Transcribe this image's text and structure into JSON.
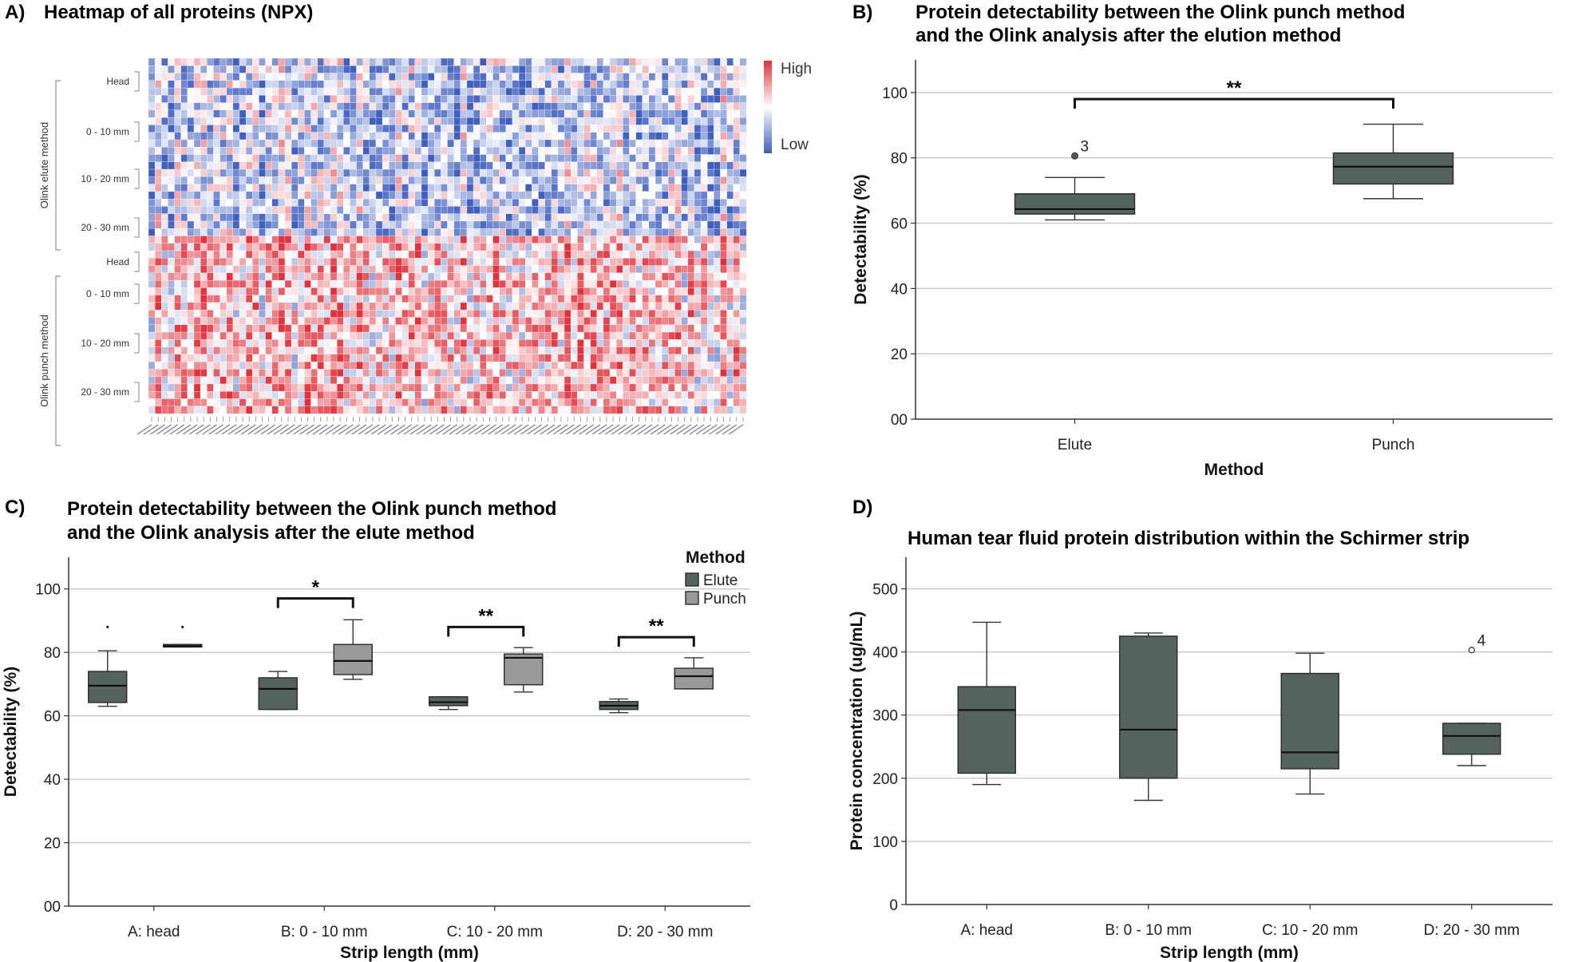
{
  "panels": {
    "a": {
      "letter": "A)",
      "title": "Heatmap of all proteins (NPX)",
      "legend_high": "High",
      "legend_low": "Low",
      "groups": [
        {
          "name": "Olink elute method",
          "rows": [
            "Head",
            "0 - 10 mm",
            "10 - 20 mm",
            "20 - 30 mm"
          ]
        },
        {
          "name": "Olink punch method",
          "rows": [
            "Head",
            "0 - 10 mm",
            "10 - 20 mm",
            "20 - 30 mm"
          ]
        }
      ],
      "colors": {
        "high": "#e0323c",
        "mid": "#ffffff",
        "low": "#3f5fbf"
      }
    },
    "b": {
      "letter": "B)"
    },
    "c": {
      "letter": "C)"
    },
    "d": {
      "letter": "D)"
    }
  },
  "chart_data": [
    {
      "id": "b",
      "type": "boxplot",
      "title": "Protein detectability between the Olink punch method",
      "title_line2": "and the Olink analysis after the elution method",
      "xlabel": "Method",
      "ylabel": "Detectability (%)",
      "ylim": [
        0,
        110
      ],
      "yticks": [
        0,
        20,
        40,
        60,
        80,
        100
      ],
      "ytick_labels": [
        "00",
        "20",
        "40",
        "60",
        "80",
        "100"
      ],
      "categories": [
        "Elute",
        "Punch"
      ],
      "series": [
        {
          "name": "Method",
          "color": "#56625c",
          "boxes": [
            {
              "min": 61,
              "q1": 62.8,
              "median": 64.3,
              "q3": 69,
              "max": 74
            },
            {
              "min": 67.5,
              "q1": 72,
              "median": 77.3,
              "q3": 81.5,
              "max": 90.3
            }
          ]
        }
      ],
      "outliers": [
        {
          "category": 0,
          "value": 80.6,
          "label": "3",
          "style": "filled"
        }
      ],
      "significance": [
        {
          "from": 0,
          "to": 1,
          "y": 98,
          "label": "**"
        }
      ]
    },
    {
      "id": "c",
      "type": "boxplot",
      "title": "Protein detectability between the Olink punch method",
      "title_line2": "and the Olink analysis after the elute method",
      "xlabel": "Strip length (mm)",
      "ylabel": "Detectability (%)",
      "ylim": [
        0,
        110
      ],
      "yticks": [
        0,
        20,
        40,
        60,
        80,
        100
      ],
      "ytick_labels": [
        "00",
        "20",
        "40",
        "60",
        "80",
        "100"
      ],
      "categories": [
        "A: head",
        "B: 0 - 10 mm",
        "C: 10 - 20 mm",
        "D: 20 - 30 mm"
      ],
      "legend_title": "Method",
      "series": [
        {
          "name": "Elute",
          "color": "#56625c",
          "boxes": [
            {
              "min": 63,
              "q1": 64.2,
              "median": 69.5,
              "q3": 74,
              "max": 80.5
            },
            {
              "min": 62,
              "q1": 62,
              "median": 68.5,
              "q3": 72,
              "max": 74
            },
            {
              "min": 62,
              "q1": 63.2,
              "median": 64.3,
              "q3": 66,
              "max": 66
            },
            {
              "min": 61,
              "q1": 62,
              "median": 63.2,
              "q3": 64.5,
              "max": 65.3
            }
          ]
        },
        {
          "name": "Punch",
          "color": "#9a9898",
          "boxes": [
            {
              "min": 81.7,
              "q1": 81.7,
              "median": 82,
              "q3": 82.5,
              "max": 82.5
            },
            {
              "min": 71.5,
              "q1": 73,
              "median": 77.3,
              "q3": 82.5,
              "max": 90.3
            },
            {
              "min": 67.5,
              "q1": 69.8,
              "median": 78.3,
              "q3": 79.5,
              "max": 81.5
            },
            {
              "min": 68.5,
              "q1": 68.5,
              "median": 72.5,
              "q3": 75,
              "max": 78.3
            }
          ]
        }
      ],
      "outliers": [
        {
          "category": 0,
          "series": 0,
          "value": 88
        },
        {
          "category": 0,
          "series": 1,
          "value": 88
        }
      ],
      "significance": [
        {
          "category": 1,
          "y": 97,
          "label": "*"
        },
        {
          "category": 2,
          "y": 88,
          "label": "**"
        },
        {
          "category": 3,
          "y": 84.8,
          "label": "**"
        }
      ]
    },
    {
      "id": "d",
      "type": "boxplot",
      "title": "Human tear fluid protein distribution within the Schirmer strip",
      "xlabel": "Strip length (mm)",
      "ylabel": "Protein concentration (ug/mL)",
      "ylim": [
        0,
        550
      ],
      "yticks": [
        0,
        100,
        200,
        300,
        400,
        500
      ],
      "ytick_labels": [
        "0",
        "100",
        "200",
        "300",
        "400",
        "500"
      ],
      "categories": [
        "A: head",
        "B: 0 - 10 mm",
        "C: 10 - 20 mm",
        "D: 20 - 30 mm"
      ],
      "series": [
        {
          "name": "Concentration",
          "color": "#56625c",
          "boxes": [
            {
              "min": 190,
              "q1": 208,
              "median": 308,
              "q3": 345,
              "max": 447
            },
            {
              "min": 165,
              "q1": 200,
              "median": 277,
              "q3": 425,
              "max": 430
            },
            {
              "min": 175,
              "q1": 215,
              "median": 241,
              "q3": 366,
              "max": 398
            },
            {
              "min": 220,
              "q1": 238,
              "median": 267,
              "q3": 287,
              "max": 287
            }
          ]
        }
      ],
      "outliers": [
        {
          "category": 3,
          "value": 403,
          "label": "4",
          "style": "open"
        }
      ]
    }
  ]
}
